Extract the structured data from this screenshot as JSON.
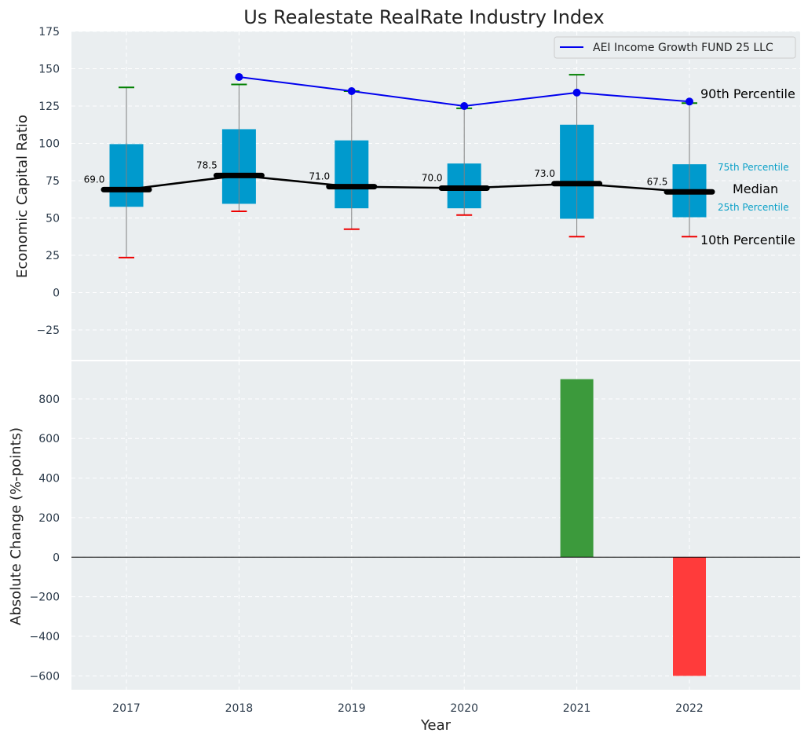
{
  "chart_data": [
    {
      "type": "box",
      "title": "Us Realestate RealRate Industry Index",
      "ylabel": "Economic Capital Ratio",
      "ylim": [
        -45,
        175
      ],
      "yticks": [
        -25,
        0,
        25,
        50,
        75,
        100,
        125,
        150,
        175
      ],
      "categories": [
        "2017",
        "2018",
        "2019",
        "2020",
        "2021",
        "2022"
      ],
      "grid": true,
      "p10": [
        23.5,
        54.5,
        42.5,
        52.0,
        37.5,
        37.5
      ],
      "p25": [
        57.5,
        59.5,
        56.5,
        56.5,
        49.5,
        50.5
      ],
      "median": [
        69.0,
        78.5,
        71.0,
        70.0,
        73.0,
        67.5
      ],
      "p75": [
        99.5,
        109.5,
        102.0,
        86.5,
        112.5,
        86.0
      ],
      "p90": [
        137.5,
        139.5,
        135.0,
        123.5,
        146.0,
        127.0
      ],
      "median_labels": [
        "69.0",
        "78.5",
        "71.0",
        "70.0",
        "73.0",
        "67.5"
      ],
      "series": [
        {
          "name": "AEI Income Growth FUND 25 LLC",
          "x": [
            "2018",
            "2019",
            "2020",
            "2021",
            "2022"
          ],
          "values": [
            144.5,
            135.0,
            125.0,
            134.0,
            128.0
          ],
          "color": "#0000ee"
        }
      ],
      "legend": {
        "position": "top-right",
        "entries": [
          "AEI Income Growth FUND 25 LLC"
        ]
      },
      "annotations": {
        "p90": "90th Percentile",
        "p75": "75th Percentile",
        "median": "Median",
        "p25": "25th Percentile",
        "p10": "10th Percentile"
      },
      "colors": {
        "box": "#009acd",
        "p90_cap": "#008000",
        "p10_cap": "#ee0000",
        "median": "#000000",
        "whisker": "#808080",
        "annotation_blue": "#0aa0c8"
      }
    },
    {
      "type": "bar",
      "ylabel": "Absolute Change (%-points)",
      "xlabel": "Year",
      "ylim": [
        -670,
        990
      ],
      "yticks": [
        -600,
        -400,
        -200,
        0,
        200,
        400,
        600,
        800
      ],
      "categories": [
        "2017",
        "2018",
        "2019",
        "2020",
        "2021",
        "2022"
      ],
      "values": [
        null,
        null,
        null,
        null,
        900,
        -600
      ],
      "grid": true,
      "colors": {
        "positive": "#3c9a3c",
        "negative": "#ff3b3b"
      }
    }
  ]
}
